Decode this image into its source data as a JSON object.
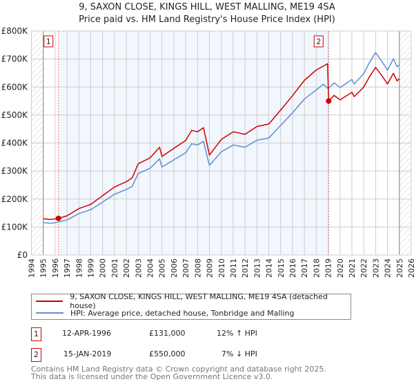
{
  "title_line1": "9, SAXON CLOSE, KINGS HILL, WEST MALLING, ME19 4SA",
  "title_line2": "Price paid vs. HM Land Registry's House Price Index (HPI)",
  "chart_data": {
    "type": "line",
    "title": "9, SAXON CLOSE, KINGS HILL, WEST MALLING, ME19 4SA — Price paid vs. HM Land Registry's House Price Index (HPI)",
    "xlim": [
      1994,
      2026
    ],
    "ylim": [
      0,
      800000
    ],
    "x_ticks": [
      "1994",
      "1995",
      "1996",
      "1997",
      "1998",
      "1999",
      "2000",
      "2001",
      "2002",
      "2003",
      "2004",
      "2005",
      "2006",
      "2007",
      "2008",
      "2009",
      "2010",
      "2011",
      "2012",
      "2013",
      "2014",
      "2015",
      "2016",
      "2017",
      "2018",
      "2019",
      "2020",
      "2021",
      "2022",
      "2023",
      "2024",
      "2025",
      "2026"
    ],
    "y_ticks": [
      {
        "v": 0,
        "label": "£0"
      },
      {
        "v": 100000,
        "label": "£100K"
      },
      {
        "v": 200000,
        "label": "£200K"
      },
      {
        "v": 300000,
        "label": "£300K"
      },
      {
        "v": 400000,
        "label": "£400K"
      },
      {
        "v": 500000,
        "label": "£500K"
      },
      {
        "v": 600000,
        "label": "£600K"
      },
      {
        "v": 700000,
        "label": "£700K"
      },
      {
        "v": 800000,
        "label": "£800K"
      }
    ],
    "grid": true,
    "legend_placement": "bottom",
    "series": [
      {
        "name": "9, SAXON CLOSE, KINGS HILL, WEST MALLING, ME19 4SA (detached house)",
        "color": "#cc0000",
        "x": [
          1995.0,
          1995.5,
          1996.0,
          1996.28,
          1997.0,
          1998.0,
          1999.0,
          2000.0,
          2001.0,
          2002.0,
          2002.5,
          2003.0,
          2004.0,
          2004.8,
          2005.0,
          2006.0,
          2007.0,
          2007.5,
          2008.0,
          2008.5,
          2009.0,
          2010.0,
          2011.0,
          2012.0,
          2013.0,
          2014.0,
          2015.0,
          2016.0,
          2016.5,
          2017.0,
          2018.0,
          2018.95,
          2019.04,
          2019.5,
          2020.0,
          2021.0,
          2021.2,
          2022.0,
          2022.5,
          2023.0,
          2023.5,
          2024.0,
          2024.5,
          2024.8,
          2025.0
        ],
        "y": [
          130000,
          127000,
          129000,
          131000,
          140000,
          166000,
          181000,
          212000,
          243000,
          262000,
          276000,
          326000,
          347000,
          385000,
          352000,
          381000,
          409000,
          445000,
          440000,
          455000,
          357000,
          413000,
          440000,
          431000,
          459000,
          468000,
          518000,
          569000,
          597000,
          624000,
          661000,
          683000,
          550000,
          570000,
          554000,
          581000,
          566000,
          600000,
          638000,
          670000,
          642000,
          611000,
          649000,
          622000,
          630000
        ]
      },
      {
        "name": "HPI: Average price, detached house, Tonbridge and Malling",
        "color": "#5b8fd0",
        "x": [
          1995.0,
          1995.5,
          1996.0,
          1997.0,
          1998.0,
          1999.0,
          2000.0,
          2001.0,
          2002.0,
          2002.5,
          2003.0,
          2004.0,
          2004.8,
          2005.0,
          2006.0,
          2007.0,
          2007.5,
          2008.0,
          2008.5,
          2009.0,
          2010.0,
          2011.0,
          2012.0,
          2013.0,
          2014.0,
          2015.0,
          2016.0,
          2016.5,
          2017.0,
          2018.0,
          2018.6,
          2019.0,
          2019.5,
          2020.0,
          2021.0,
          2021.2,
          2022.0,
          2022.5,
          2023.0,
          2023.5,
          2024.0,
          2024.5,
          2024.8,
          2025.0
        ],
        "y": [
          116000,
          114000,
          115000,
          125000,
          148000,
          162000,
          189000,
          217000,
          234000,
          246000,
          291000,
          310000,
          344000,
          314000,
          340000,
          365000,
          397000,
          393000,
          406000,
          320000,
          369000,
          393000,
          385000,
          410000,
          418000,
          463000,
          508000,
          533000,
          557000,
          590000,
          610000,
          594000,
          615000,
          598000,
          627000,
          611000,
          648000,
          689000,
          723000,
          693000,
          660000,
          701000,
          672000,
          680000
        ]
      }
    ],
    "sales": [
      {
        "label": "1",
        "x": 1996.28,
        "y": 131000
      },
      {
        "label": "2",
        "x": 2019.04,
        "y": 550000
      }
    ]
  },
  "legend": {
    "property": "9, SAXON CLOSE, KINGS HILL, WEST MALLING, ME19 4SA (detached house)",
    "hpi": "HPI: Average price, detached house, Tonbridge and Malling"
  },
  "transactions": [
    {
      "num": "1",
      "date": "12-APR-1996",
      "price": "£131,000",
      "hpi": "12% ↑ HPI"
    },
    {
      "num": "2",
      "date": "15-JAN-2019",
      "price": "£550,000",
      "hpi": "7% ↓ HPI"
    }
  ],
  "footer": {
    "line1": "Contains HM Land Registry data © Crown copyright and database right 2025.",
    "line2": "This data is licensed under the Open Government Licence v3.0."
  }
}
